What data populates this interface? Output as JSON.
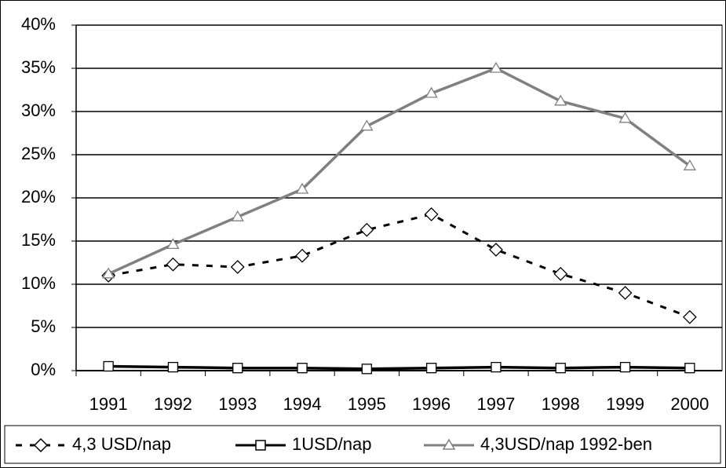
{
  "chart_data": {
    "type": "line",
    "categories": [
      "1991",
      "1992",
      "1993",
      "1994",
      "1995",
      "1996",
      "1997",
      "1998",
      "1999",
      "2000"
    ],
    "series": [
      {
        "name": "4,3 USD/nap",
        "color": "#000000",
        "marker": "diamond",
        "dash": true,
        "values": [
          11,
          12.3,
          12,
          13.3,
          16.3,
          18.1,
          14,
          11.2,
          9,
          6.2
        ]
      },
      {
        "name": "1USD/nap",
        "color": "#000000",
        "marker": "square",
        "dash": false,
        "values": [
          0.5,
          0.4,
          0.3,
          0.3,
          0.2,
          0.3,
          0.4,
          0.3,
          0.4,
          0.3
        ]
      },
      {
        "name": "4,3USD/nap 1992-ben",
        "color": "#808080",
        "marker": "triangle",
        "dash": false,
        "values": [
          11.2,
          14.6,
          17.8,
          21,
          28.3,
          32.1,
          35,
          31.2,
          29.2,
          23.7
        ]
      }
    ],
    "ylim": [
      0,
      40
    ],
    "yticks": [
      {
        "value": 0,
        "label": "0%"
      },
      {
        "value": 5,
        "label": "5%"
      },
      {
        "value": 10,
        "label": "10%"
      },
      {
        "value": 15,
        "label": "15%"
      },
      {
        "value": 20,
        "label": "20%"
      },
      {
        "value": 25,
        "label": "25%"
      },
      {
        "value": 30,
        "label": "30%"
      },
      {
        "value": 35,
        "label": "35%"
      },
      {
        "value": 40,
        "label": "40%"
      }
    ],
    "grid": true,
    "legend": "bottom"
  }
}
